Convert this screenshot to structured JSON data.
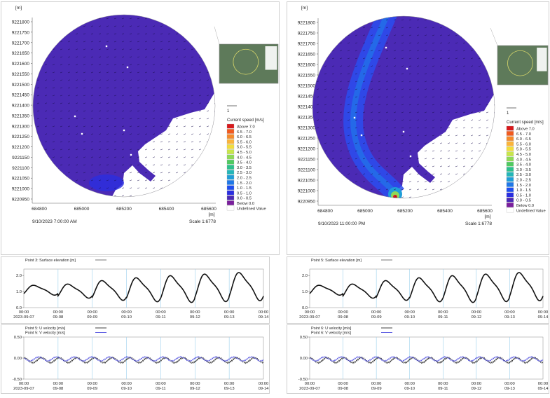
{
  "colors": {
    "water": "#4b2ab5",
    "grid_line": "#9ad0ec",
    "elevation_line": "#111111",
    "u_series": "#111111",
    "v_series": "#3b3bdc"
  },
  "maps": [
    {
      "unit_label": "[m]",
      "y_ticks": [
        "9221800",
        "9221750",
        "9221700",
        "9221650",
        "9221600",
        "9221550",
        "9221500",
        "9221450",
        "9221400",
        "9221350",
        "9221300",
        "9221250",
        "9221200",
        "9221150",
        "9221100",
        "9221050",
        "9221000",
        "9220950"
      ],
      "x_ticks": [
        "684800",
        "685000",
        "685200",
        "685400",
        "685600"
      ],
      "x_unit": "[m]",
      "timestamp": "9/10/2023 7:00:00 AM",
      "scale": "Scale 1:6778",
      "arrow_ref": "1",
      "legend_title": "Current speed [m/s]",
      "legend": [
        {
          "label": "Above 7.0",
          "color": "#d7191c"
        },
        {
          "label": "6.5 - 7.0",
          "color": "#f25a1e"
        },
        {
          "label": "6.0 - 6.5",
          "color": "#f68a2a"
        },
        {
          "label": "5.5 - 6.0",
          "color": "#fbb43a"
        },
        {
          "label": "5.0 - 5.5",
          "color": "#f2dd3c"
        },
        {
          "label": "4.5 - 5.0",
          "color": "#c8e64a"
        },
        {
          "label": "4.0 - 4.5",
          "color": "#8fd957"
        },
        {
          "label": "3.5 - 4.0",
          "color": "#4fca60"
        },
        {
          "label": "3.0 - 3.5",
          "color": "#2cc08c"
        },
        {
          "label": "2.5 - 3.0",
          "color": "#24b6b8"
        },
        {
          "label": "2.0 - 2.5",
          "color": "#1f9ed8"
        },
        {
          "label": "1.5 - 2.0",
          "color": "#1f78e8"
        },
        {
          "label": "1.0 - 1.5",
          "color": "#1f4ef0"
        },
        {
          "label": "0.5 - 1.0",
          "color": "#2a2ee0"
        },
        {
          "label": "0.0 - 0.5",
          "color": "#4b2ab5"
        },
        {
          "label": "Below 0.0",
          "color": "#7a1e9c"
        },
        {
          "label": "Undefined Value",
          "color": "#ffffff"
        }
      ]
    },
    {
      "unit_label": "[m]",
      "y_ticks": [
        "9221800",
        "9221750",
        "9221700",
        "9221650",
        "9221600",
        "9221550",
        "9221500",
        "9221450",
        "9221400",
        "9221350",
        "9221300",
        "9221250",
        "9221200",
        "9221150",
        "9221100",
        "9221050",
        "9221000",
        "9220950"
      ],
      "x_ticks": [
        "684800",
        "685000",
        "685200",
        "685400",
        "685600"
      ],
      "x_unit": "[m]",
      "timestamp": "9/10/2023 11:00:00 PM",
      "scale": "Scale 1:6778",
      "arrow_ref": "1",
      "legend_title": "Current speed [m/s]",
      "legend": [
        {
          "label": "Above 7.0",
          "color": "#d7191c"
        },
        {
          "label": "6.5 - 7.0",
          "color": "#f25a1e"
        },
        {
          "label": "6.0 - 6.5",
          "color": "#f68a2a"
        },
        {
          "label": "5.5 - 6.0",
          "color": "#fbb43a"
        },
        {
          "label": "5.0 - 5.5",
          "color": "#f2dd3c"
        },
        {
          "label": "4.5 - 5.0",
          "color": "#c8e64a"
        },
        {
          "label": "4.0 - 4.5",
          "color": "#8fd957"
        },
        {
          "label": "3.5 - 4.0",
          "color": "#4fca60"
        },
        {
          "label": "3.0 - 3.5",
          "color": "#2cc08c"
        },
        {
          "label": "2.5 - 3.0",
          "color": "#24b6b8"
        },
        {
          "label": "2.0 - 2.5",
          "color": "#1f9ed8"
        },
        {
          "label": "1.5 - 2.0",
          "color": "#1f78e8"
        },
        {
          "label": "1.0 - 1.5",
          "color": "#1f4ef0"
        },
        {
          "label": "0.5 - 1.0",
          "color": "#2a2ee0"
        },
        {
          "label": "0.0 - 0.5",
          "color": "#4b2ab5"
        },
        {
          "label": "Below 0.0",
          "color": "#7a1e9c"
        },
        {
          "label": "Undefined Value",
          "color": "#ffffff"
        }
      ]
    }
  ],
  "chart_data": [
    {
      "type": "line",
      "legend": [
        "Point 3: Surface elevation [m]"
      ],
      "y_ticks": [
        "2.0",
        "1.0",
        "0.0"
      ],
      "ylim": [
        0,
        2.4
      ],
      "x_ticks": [
        "00:00\n2023-09-07",
        "00:00\n09-08",
        "00:00\n09-09",
        "00:00\n09-10",
        "00:00\n09-11",
        "00:00\n09-12",
        "00:00\n09-13",
        "00:00\n09-14"
      ],
      "x_days": [
        0,
        7
      ],
      "series": [
        {
          "name": "Point 3: Surface elevation [m]",
          "peaks": [
            1.45,
            1.55,
            1.8,
            2.0,
            2.15,
            2.25,
            2.35
          ],
          "troughs": [
            0.75,
            0.55,
            0.4,
            0.3,
            0.25,
            0.3,
            0.35
          ]
        }
      ]
    },
    {
      "type": "line",
      "legend": [
        "Point 5: Surface elevation [m]"
      ],
      "y_ticks": [
        "2.0",
        "1.0",
        "0.0"
      ],
      "ylim": [
        0,
        2.4
      ],
      "x_ticks": [
        "00:00\n2023-09-07",
        "00:00\n09-08",
        "00:00\n09-09",
        "00:00\n09-10",
        "00:00\n09-11",
        "00:00\n09-12",
        "00:00\n09-13",
        "00:00\n09-14"
      ],
      "x_days": [
        0,
        7
      ],
      "series": [
        {
          "name": "Point 5: Surface elevation [m]",
          "peaks": [
            1.45,
            1.55,
            1.8,
            2.0,
            2.15,
            2.25,
            2.35
          ],
          "troughs": [
            0.75,
            0.55,
            0.4,
            0.3,
            0.25,
            0.3,
            0.35
          ]
        }
      ]
    },
    {
      "type": "line",
      "legend": [
        "Point 5: U velocity [m/s]",
        "Point 5: V velocity [m/s]"
      ],
      "y_ticks": [
        "0.50",
        "0.00",
        "-0.50"
      ],
      "ylim": [
        -0.5,
        0.5
      ],
      "x_ticks": [
        "00:00\n2023-09-07",
        "00:00\n09-08",
        "00:00\n09-09",
        "00:00\n09-10",
        "00:00\n09-11",
        "00:00\n09-12",
        "00:00\n09-13",
        "00:00\n09-14"
      ],
      "x_days": [
        0,
        7
      ],
      "series": [
        {
          "name": "Point 5: U velocity [m/s]",
          "mean": -0.05,
          "amplitude": 0.1
        },
        {
          "name": "Point 5: V velocity [m/s]",
          "mean": -0.02,
          "amplitude": 0.08
        }
      ]
    },
    {
      "type": "line",
      "legend": [
        "Point 6: U velocity [m/s]",
        "Point 6: V velocity [m/s]"
      ],
      "y_ticks": [
        "0.50",
        "0.00",
        "-0.50"
      ],
      "ylim": [
        -0.5,
        0.5
      ],
      "x_ticks": [
        "00:00\n2023-09-07",
        "00:00\n09-08",
        "00:00\n09-09",
        "00:00\n09-10",
        "00:00\n09-11",
        "00:00\n09-12",
        "00:00\n09-13",
        "00:00\n09-14"
      ],
      "x_days": [
        0,
        7
      ],
      "series": [
        {
          "name": "Point 6: U velocity [m/s]",
          "mean": -0.05,
          "amplitude": 0.1
        },
        {
          "name": "Point 6: V velocity [m/s]",
          "mean": -0.02,
          "amplitude": 0.08
        }
      ]
    }
  ]
}
